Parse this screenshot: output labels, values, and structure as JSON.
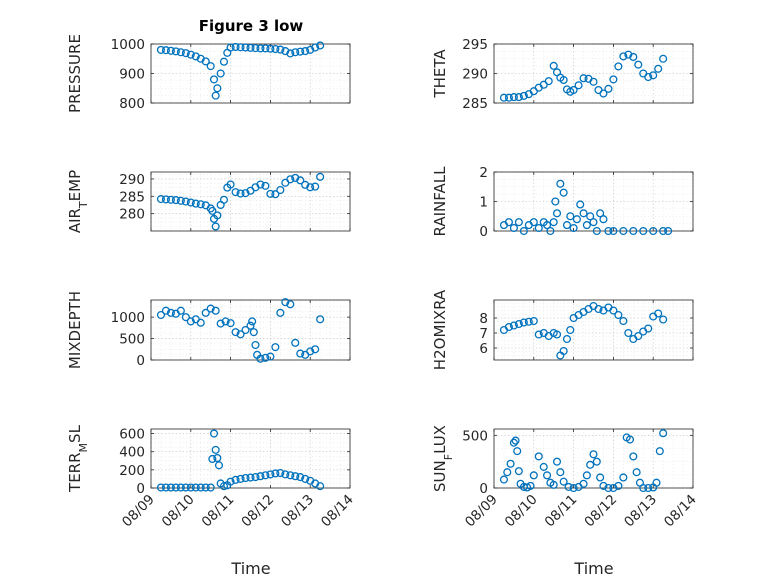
{
  "figure": {
    "title": "Figure 3 low",
    "marker_color": "#0072BD",
    "axis_color": "#262626"
  },
  "chart_data": [
    {
      "type": "scatter",
      "ylabel": "PRESSURE",
      "xlim": [
        "08/09",
        "08/14"
      ],
      "ylim": [
        800,
        1000
      ],
      "yticks": [
        800,
        900,
        1000
      ],
      "xticks": [
        "08/09",
        "08/10",
        "08/11",
        "08/12",
        "08/13",
        "08/14"
      ],
      "grid": true,
      "x": [
        "08/09 06:00",
        "08/09 09:00",
        "08/09 12:00",
        "08/09 15:00",
        "08/09 18:00",
        "08/09 21:00",
        "08/10 00:00",
        "08/10 03:00",
        "08/10 06:00",
        "08/10 09:00",
        "08/10 12:00",
        "08/10 14:00",
        "08/10 15:00",
        "08/10 16:00",
        "08/10 18:00",
        "08/10 20:00",
        "08/10 22:00",
        "08/11 00:00",
        "08/11 03:00",
        "08/11 06:00",
        "08/11 09:00",
        "08/11 12:00",
        "08/11 15:00",
        "08/11 18:00",
        "08/11 21:00",
        "08/12 00:00",
        "08/12 03:00",
        "08/12 06:00",
        "08/12 09:00",
        "08/12 12:00",
        "08/12 15:00",
        "08/12 18:00",
        "08/12 21:00",
        "08/13 00:00",
        "08/13 03:00",
        "08/13 06:00"
      ],
      "y": [
        980,
        979,
        977,
        975,
        972,
        969,
        964,
        958,
        950,
        941,
        925,
        880,
        825,
        850,
        900,
        940,
        970,
        988,
        990,
        989,
        988,
        987,
        986,
        985,
        985,
        984,
        983,
        981,
        976,
        968,
        972,
        974,
        976,
        980,
        988,
        995
      ]
    },
    {
      "type": "scatter",
      "ylabel": "THETA",
      "xlim": [
        "08/09",
        "08/14"
      ],
      "ylim": [
        285,
        295
      ],
      "yticks": [
        285,
        290,
        295
      ],
      "xticks": [
        "08/09",
        "08/10",
        "08/11",
        "08/12",
        "08/13",
        "08/14"
      ],
      "grid": true,
      "x": [
        "08/09 06:00",
        "08/09 09:00",
        "08/09 12:00",
        "08/09 15:00",
        "08/09 18:00",
        "08/09 21:00",
        "08/10 00:00",
        "08/10 03:00",
        "08/10 06:00",
        "08/10 09:00",
        "08/10 12:00",
        "08/10 14:00",
        "08/10 16:00",
        "08/10 18:00",
        "08/10 20:00",
        "08/10 22:00",
        "08/11 00:00",
        "08/11 03:00",
        "08/11 06:00",
        "08/11 09:00",
        "08/11 12:00",
        "08/11 15:00",
        "08/11 18:00",
        "08/11 21:00",
        "08/12 00:00",
        "08/12 03:00",
        "08/12 06:00",
        "08/12 09:00",
        "08/12 12:00",
        "08/12 15:00",
        "08/12 18:00",
        "08/12 21:00",
        "08/13 00:00",
        "08/13 03:00",
        "08/13 06:00"
      ],
      "y": [
        285.9,
        285.9,
        286.0,
        286.0,
        286.2,
        286.5,
        287.0,
        287.6,
        288.1,
        288.7,
        291.3,
        290.2,
        289.3,
        288.9,
        287.3,
        286.9,
        287.2,
        288.0,
        289.2,
        289.1,
        288.6,
        287.2,
        286.6,
        287.4,
        289.0,
        291.2,
        292.9,
        293.2,
        292.8,
        291.5,
        290.0,
        289.4,
        289.7,
        290.8,
        292.5
      ]
    },
    {
      "type": "scatter",
      "ylabel": "AIR_TEMP",
      "xlim": [
        "08/09",
        "08/14"
      ],
      "ylim": [
        275,
        292
      ],
      "yticks": [
        280,
        285,
        290
      ],
      "xticks": [
        "08/09",
        "08/10",
        "08/11",
        "08/12",
        "08/13",
        "08/14"
      ],
      "grid": true,
      "x": [
        "08/09 06:00",
        "08/09 09:00",
        "08/09 12:00",
        "08/09 15:00",
        "08/09 18:00",
        "08/09 21:00",
        "08/10 00:00",
        "08/10 03:00",
        "08/10 06:00",
        "08/10 09:00",
        "08/10 12:00",
        "08/10 13:00",
        "08/10 14:00",
        "08/10 15:00",
        "08/10 16:00",
        "08/10 18:00",
        "08/10 20:00",
        "08/10 22:00",
        "08/11 00:00",
        "08/11 03:00",
        "08/11 06:00",
        "08/11 09:00",
        "08/11 12:00",
        "08/11 15:00",
        "08/11 18:00",
        "08/11 21:00",
        "08/12 00:00",
        "08/12 03:00",
        "08/12 06:00",
        "08/12 09:00",
        "08/12 12:00",
        "08/12 15:00",
        "08/12 18:00",
        "08/12 21:00",
        "08/13 00:00",
        "08/13 03:00",
        "08/13 06:00"
      ],
      "y": [
        284.2,
        284.1,
        284.0,
        283.9,
        283.7,
        283.5,
        283.2,
        282.9,
        282.7,
        282.4,
        281.5,
        280.8,
        278.5,
        276.3,
        279.5,
        282.5,
        284.0,
        287.5,
        288.4,
        286.2,
        285.8,
        285.9,
        286.6,
        287.6,
        288.4,
        288.0,
        285.7,
        285.6,
        286.8,
        288.9,
        289.9,
        290.3,
        289.6,
        288.3,
        287.6,
        287.8,
        290.6
      ]
    },
    {
      "type": "scatter",
      "ylabel": "RAINFALL",
      "xlim": [
        "08/09",
        "08/14"
      ],
      "ylim": [
        0,
        2
      ],
      "yticks": [
        0,
        1,
        2
      ],
      "xticks": [
        "08/09",
        "08/10",
        "08/11",
        "08/12",
        "08/13",
        "08/14"
      ],
      "grid": true,
      "x": [
        "08/09 06:00",
        "08/09 09:00",
        "08/09 12:00",
        "08/09 15:00",
        "08/09 18:00",
        "08/09 21:00",
        "08/10 00:00",
        "08/10 03:00",
        "08/10 06:00",
        "08/10 08:00",
        "08/10 10:00",
        "08/10 12:00",
        "08/10 13:00",
        "08/10 14:00",
        "08/10 16:00",
        "08/10 18:00",
        "08/10 20:00",
        "08/10 22:00",
        "08/11 00:00",
        "08/11 02:00",
        "08/11 04:00",
        "08/11 06:00",
        "08/11 08:00",
        "08/11 10:00",
        "08/11 12:00",
        "08/11 14:00",
        "08/11 16:00",
        "08/11 18:00",
        "08/11 21:00",
        "08/12 00:00",
        "08/12 06:00",
        "08/12 12:00",
        "08/12 18:00",
        "08/13 00:00",
        "08/13 06:00",
        "08/13 09:00"
      ],
      "y": [
        0.2,
        0.3,
        0.1,
        0.3,
        0.0,
        0.2,
        0.3,
        0.1,
        0.3,
        0.2,
        0.0,
        0.3,
        1.0,
        0.6,
        1.6,
        1.3,
        0.2,
        0.5,
        0.1,
        0.4,
        0.9,
        0.6,
        0.2,
        0.5,
        0.3,
        0.0,
        0.6,
        0.4,
        0.0,
        0.0,
        0.0,
        0.0,
        0.0,
        0.0,
        0.0,
        0.0
      ]
    },
    {
      "type": "scatter",
      "ylabel": "MIXDEPTH",
      "xlim": [
        "08/09",
        "08/14"
      ],
      "ylim": [
        0,
        1400
      ],
      "yticks": [
        0,
        500,
        1000
      ],
      "xticks": [
        "08/09",
        "08/10",
        "08/11",
        "08/12",
        "08/13",
        "08/14"
      ],
      "grid": true,
      "x": [
        "08/09 06:00",
        "08/09 09:00",
        "08/09 12:00",
        "08/09 15:00",
        "08/09 18:00",
        "08/09 21:00",
        "08/10 00:00",
        "08/10 03:00",
        "08/10 06:00",
        "08/10 09:00",
        "08/10 12:00",
        "08/10 15:00",
        "08/10 18:00",
        "08/10 21:00",
        "08/11 00:00",
        "08/11 03:00",
        "08/11 06:00",
        "08/11 09:00",
        "08/11 12:00",
        "08/11 13:00",
        "08/11 14:00",
        "08/11 15:00",
        "08/11 16:00",
        "08/11 18:00",
        "08/11 21:00",
        "08/12 00:00",
        "08/12 03:00",
        "08/12 06:00",
        "08/12 09:00",
        "08/12 12:00",
        "08/12 15:00",
        "08/12 18:00",
        "08/12 21:00",
        "08/13 00:00",
        "08/13 03:00",
        "08/13 06:00"
      ],
      "y": [
        1050,
        1150,
        1100,
        1080,
        1150,
        1000,
        900,
        950,
        870,
        1100,
        1200,
        1150,
        850,
        900,
        860,
        650,
        600,
        700,
        800,
        900,
        650,
        350,
        120,
        30,
        50,
        80,
        300,
        1100,
        1350,
        1300,
        400,
        150,
        120,
        200,
        250,
        950
      ]
    },
    {
      "type": "scatter",
      "ylabel": "H2OMIXRA",
      "xlim": [
        "08/09",
        "08/14"
      ],
      "ylim": [
        5.2,
        9.2
      ],
      "yticks": [
        6,
        7,
        8
      ],
      "xticks": [
        "08/09",
        "08/10",
        "08/11",
        "08/12",
        "08/13",
        "08/14"
      ],
      "grid": true,
      "x": [
        "08/09 06:00",
        "08/09 09:00",
        "08/09 12:00",
        "08/09 15:00",
        "08/09 18:00",
        "08/09 21:00",
        "08/10 00:00",
        "08/10 03:00",
        "08/10 06:00",
        "08/10 09:00",
        "08/10 12:00",
        "08/10 14:00",
        "08/10 16:00",
        "08/10 18:00",
        "08/10 20:00",
        "08/10 22:00",
        "08/11 00:00",
        "08/11 03:00",
        "08/11 06:00",
        "08/11 09:00",
        "08/11 12:00",
        "08/11 15:00",
        "08/11 18:00",
        "08/11 21:00",
        "08/12 00:00",
        "08/12 03:00",
        "08/12 06:00",
        "08/12 09:00",
        "08/12 12:00",
        "08/12 15:00",
        "08/12 18:00",
        "08/12 21:00",
        "08/13 00:00",
        "08/13 03:00",
        "08/13 06:00"
      ],
      "y": [
        7.2,
        7.4,
        7.5,
        7.6,
        7.7,
        7.75,
        7.8,
        6.9,
        7.0,
        6.8,
        7.0,
        6.9,
        5.5,
        5.8,
        6.6,
        7.2,
        8.0,
        8.2,
        8.4,
        8.6,
        8.8,
        8.6,
        8.5,
        8.7,
        8.5,
        8.2,
        7.8,
        7.0,
        6.6,
        6.8,
        7.1,
        7.3,
        8.1,
        8.3,
        7.9
      ]
    },
    {
      "type": "scatter",
      "ylabel": "TERR_MSL",
      "xlim": [
        "08/09",
        "08/14"
      ],
      "ylim": [
        0,
        650
      ],
      "yticks": [
        0,
        200,
        400,
        600
      ],
      "xticks": [
        "08/09",
        "08/10",
        "08/11",
        "08/12",
        "08/13",
        "08/14"
      ],
      "grid": true,
      "x": [
        "08/09 06:00",
        "08/09 09:00",
        "08/09 12:00",
        "08/09 15:00",
        "08/09 18:00",
        "08/09 21:00",
        "08/10 00:00",
        "08/10 03:00",
        "08/10 06:00",
        "08/10 09:00",
        "08/10 12:00",
        "08/10 13:00",
        "08/10 14:00",
        "08/10 15:00",
        "08/10 16:00",
        "08/10 17:00",
        "08/10 18:00",
        "08/10 20:00",
        "08/10 22:00",
        "08/11 00:00",
        "08/11 03:00",
        "08/11 06:00",
        "08/11 09:00",
        "08/11 12:00",
        "08/11 15:00",
        "08/11 18:00",
        "08/11 21:00",
        "08/12 00:00",
        "08/12 03:00",
        "08/12 06:00",
        "08/12 09:00",
        "08/12 12:00",
        "08/12 15:00",
        "08/12 18:00",
        "08/12 21:00",
        "08/13 00:00",
        "08/13 03:00",
        "08/13 06:00"
      ],
      "y": [
        5,
        5,
        5,
        5,
        5,
        5,
        5,
        5,
        5,
        5,
        5,
        320,
        600,
        420,
        330,
        250,
        50,
        20,
        30,
        70,
        90,
        100,
        110,
        115,
        120,
        130,
        140,
        150,
        160,
        165,
        150,
        140,
        130,
        120,
        100,
        80,
        50,
        20
      ]
    },
    {
      "type": "scatter",
      "ylabel": "SUN_FLUX",
      "xlim": [
        "08/09",
        "08/14"
      ],
      "ylim": [
        0,
        560
      ],
      "yticks": [
        0,
        500
      ],
      "xticks": [
        "08/09",
        "08/10",
        "08/11",
        "08/12",
        "08/13",
        "08/14"
      ],
      "grid": true,
      "x": [
        "08/09 06:00",
        "08/09 08:00",
        "08/09 10:00",
        "08/09 12:00",
        "08/09 13:00",
        "08/09 14:00",
        "08/09 15:00",
        "08/09 16:00",
        "08/09 18:00",
        "08/09 20:00",
        "08/09 22:00",
        "08/10 00:00",
        "08/10 03:00",
        "08/10 06:00",
        "08/10 08:00",
        "08/10 10:00",
        "08/10 12:00",
        "08/10 14:00",
        "08/10 16:00",
        "08/10 18:00",
        "08/10 21:00",
        "08/11 00:00",
        "08/11 03:00",
        "08/11 06:00",
        "08/11 08:00",
        "08/11 10:00",
        "08/11 12:00",
        "08/11 14:00",
        "08/11 16:00",
        "08/11 18:00",
        "08/11 21:00",
        "08/12 00:00",
        "08/12 03:00",
        "08/12 06:00",
        "08/12 08:00",
        "08/12 10:00",
        "08/12 12:00",
        "08/12 14:00",
        "08/12 16:00",
        "08/12 18:00",
        "08/12 21:00",
        "08/13 00:00",
        "08/13 02:00",
        "08/13 04:00",
        "08/13 06:00"
      ],
      "y": [
        80,
        150,
        230,
        430,
        450,
        350,
        160,
        40,
        10,
        5,
        20,
        120,
        300,
        200,
        120,
        50,
        30,
        250,
        150,
        60,
        10,
        0,
        10,
        40,
        120,
        220,
        320,
        250,
        100,
        20,
        0,
        0,
        20,
        100,
        480,
        460,
        300,
        150,
        50,
        0,
        0,
        5,
        50,
        350,
        520
      ]
    }
  ],
  "xaxis": {
    "label": "Time"
  }
}
